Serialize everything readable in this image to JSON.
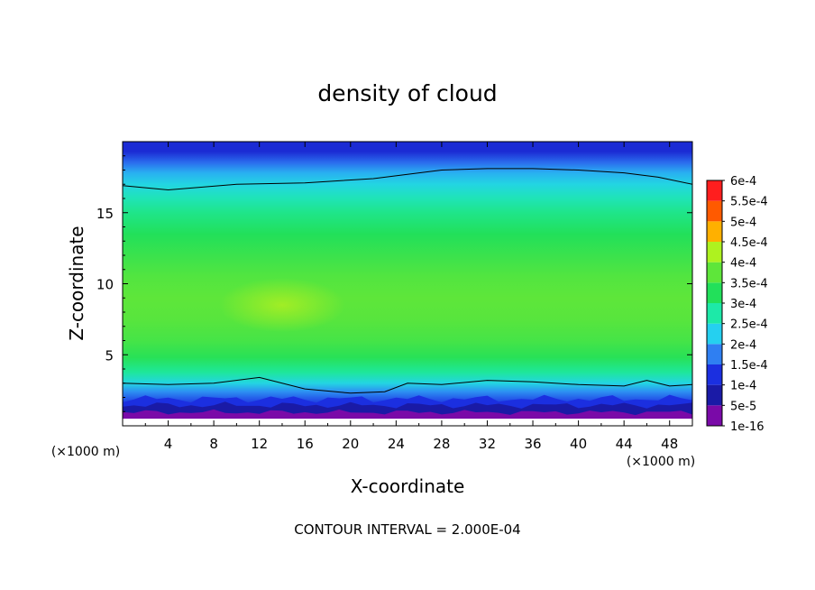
{
  "chart_data": {
    "type": "heatmap",
    "title": "density of cloud",
    "xlabel": "X-coordinate",
    "ylabel": "Z-coordinate",
    "x_unit_label": "(×1000 m)",
    "y_unit_label": "(×1000 m)",
    "xlim": [
      0,
      50
    ],
    "ylim": [
      0,
      20
    ],
    "x_ticks": [
      4,
      8,
      12,
      16,
      20,
      24,
      28,
      32,
      36,
      40,
      44,
      48
    ],
    "x_tick_labels": [
      "4",
      "8",
      "12",
      "16",
      "20",
      "24",
      "28",
      "32",
      "36",
      "40",
      "44",
      "48"
    ],
    "y_ticks": [
      5,
      10,
      15
    ],
    "y_tick_labels": [
      "5",
      "10",
      "15"
    ],
    "colorbar": {
      "levels": [
        1e-16,
        5e-05,
        0.0001,
        0.00015,
        0.0002,
        0.00025,
        0.0003,
        0.00035,
        0.0004,
        0.00045,
        0.0005,
        0.00055,
        0.0006
      ],
      "labels": [
        "1e-16",
        "5e-5",
        "1e-4",
        "1.5e-4",
        "2e-4",
        "2.5e-4",
        "3e-4",
        "3.5e-4",
        "4e-4",
        "4.5e-4",
        "5e-4",
        "5.5e-4",
        "6e-4"
      ],
      "colors": [
        "#7a0aa8",
        "#1a1aa6",
        "#1b2fe0",
        "#2f7ff2",
        "#25d0f0",
        "#1de9a8",
        "#22e05a",
        "#5ee63a",
        "#aef21f",
        "#ffb000",
        "#ff5a00",
        "#ff1e1e",
        "#f88888"
      ]
    },
    "profile": {
      "z": [
        0.3,
        0.8,
        1.3,
        1.8,
        2.4,
        3.0,
        3.8,
        4.8,
        6.0,
        7.5,
        9.0,
        10.5,
        12.0,
        13.5,
        15.0,
        16.0,
        17.0,
        17.8,
        18.5,
        19.3
      ],
      "density": [
        1e-16,
        4e-05,
        8e-05,
        0.00012,
        0.00016,
        0.00021,
        0.00026,
        0.000305,
        0.00033,
        0.000345,
        0.00035,
        0.00034,
        0.00032,
        0.0003,
        0.00027,
        0.00024,
        0.00021,
        0.00018,
        0.00014,
        9e-05
      ]
    },
    "contour_value": 0.0002,
    "contour_upper": [
      {
        "x": 0,
        "z": 16.9
      },
      {
        "x": 4,
        "z": 16.6
      },
      {
        "x": 10,
        "z": 17.0
      },
      {
        "x": 16,
        "z": 17.1
      },
      {
        "x": 22,
        "z": 17.4
      },
      {
        "x": 28,
        "z": 18.0
      },
      {
        "x": 32,
        "z": 18.1
      },
      {
        "x": 36,
        "z": 18.1
      },
      {
        "x": 40,
        "z": 18.0
      },
      {
        "x": 44,
        "z": 17.8
      },
      {
        "x": 47,
        "z": 17.5
      },
      {
        "x": 50,
        "z": 17.0
      }
    ],
    "contour_lower": [
      {
        "x": 0,
        "z": 3.0
      },
      {
        "x": 4,
        "z": 2.9
      },
      {
        "x": 8,
        "z": 3.0
      },
      {
        "x": 12,
        "z": 3.4
      },
      {
        "x": 16,
        "z": 2.6
      },
      {
        "x": 20,
        "z": 2.3
      },
      {
        "x": 23,
        "z": 2.4
      },
      {
        "x": 25,
        "z": 3.0
      },
      {
        "x": 28,
        "z": 2.9
      },
      {
        "x": 32,
        "z": 3.2
      },
      {
        "x": 36,
        "z": 3.1
      },
      {
        "x": 40,
        "z": 2.9
      },
      {
        "x": 44,
        "z": 2.8
      },
      {
        "x": 46,
        "z": 3.2
      },
      {
        "x": 48,
        "z": 2.8
      },
      {
        "x": 50,
        "z": 2.9
      }
    ],
    "footer": "CONTOUR INTERVAL = 2.000E-04"
  }
}
